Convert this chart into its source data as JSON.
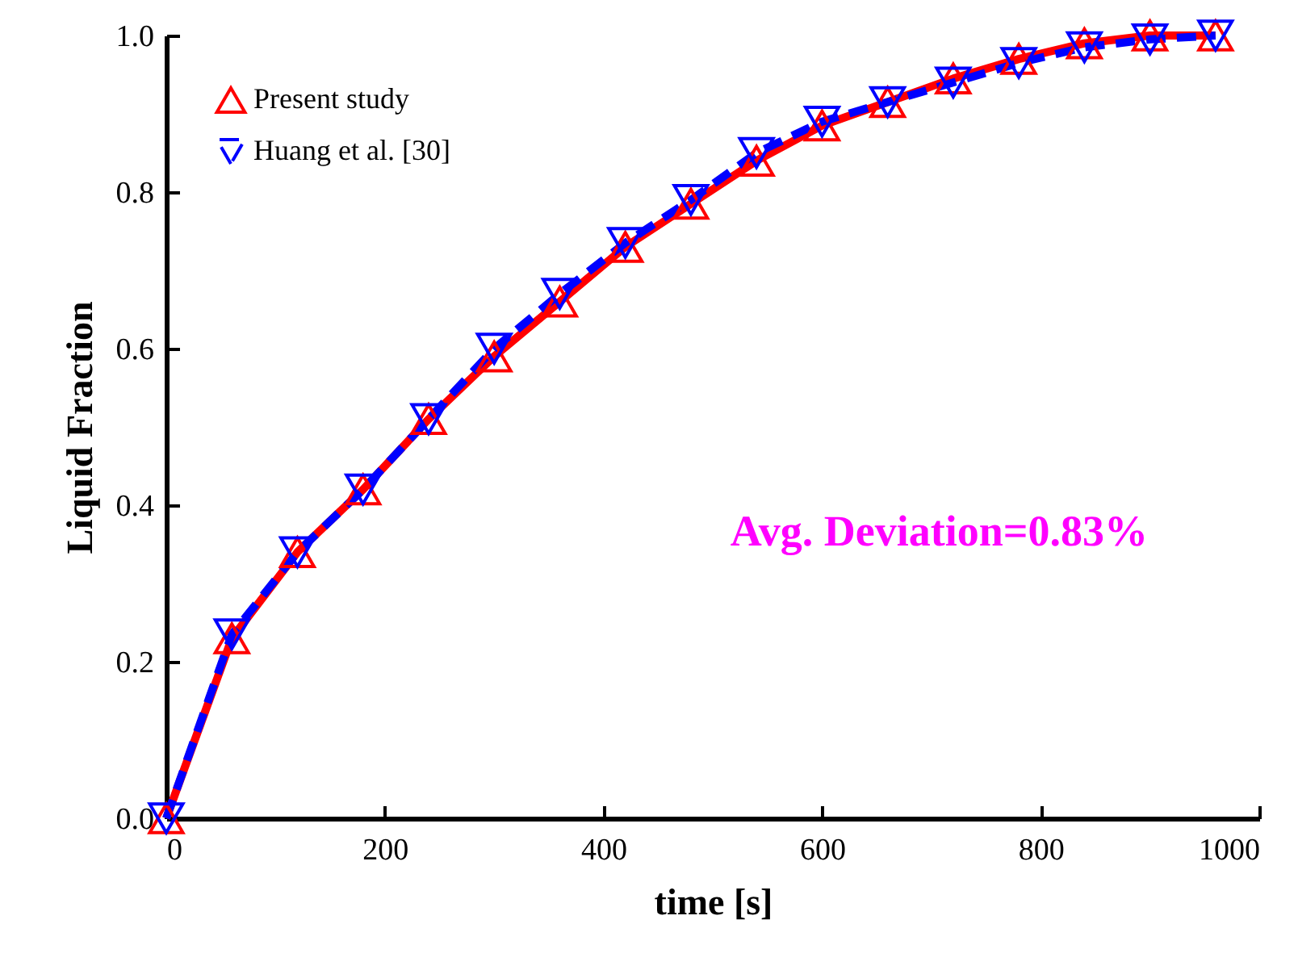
{
  "chart_data": {
    "type": "line",
    "xlabel": "time [s]",
    "ylabel": "Liquid Fraction",
    "x": [
      0,
      60,
      120,
      180,
      240,
      300,
      360,
      420,
      480,
      540,
      600,
      660,
      720,
      780,
      840,
      900,
      960
    ],
    "series": [
      {
        "name": "Present study",
        "color": "#ff0000",
        "marker": "triangle",
        "line_style": "solid",
        "values": [
          0,
          0.23,
          0.34,
          0.42,
          0.51,
          0.59,
          0.66,
          0.73,
          0.785,
          0.84,
          0.885,
          0.915,
          0.945,
          0.97,
          0.99,
          1.0,
          1.0
        ]
      },
      {
        "name": "Huang et al. [30]",
        "color": "#0000ff",
        "marker": "triangle-down",
        "line_style": "dashed",
        "values": [
          0,
          0.235,
          0.34,
          0.42,
          0.51,
          0.6,
          0.67,
          0.735,
          0.79,
          0.85,
          0.89,
          0.915,
          0.94,
          0.965,
          0.985,
          0.995,
          1.0
        ]
      }
    ],
    "xlim": [
      0,
      1000
    ],
    "xticks": [
      0,
      200,
      400,
      600,
      800,
      {
        "value": 1000,
        "label": "1000"
      }
    ],
    "ylim": [
      0,
      1.0
    ],
    "yticks": [
      {
        "value": 0,
        "label": "0.0"
      },
      0.2,
      0.4,
      0.6,
      0.8,
      {
        "value": 1.0,
        "label": "1.0"
      }
    ],
    "legend": "top left",
    "grid": false,
    "annotations": [
      "Avg. Deviation=0.83%"
    ]
  }
}
